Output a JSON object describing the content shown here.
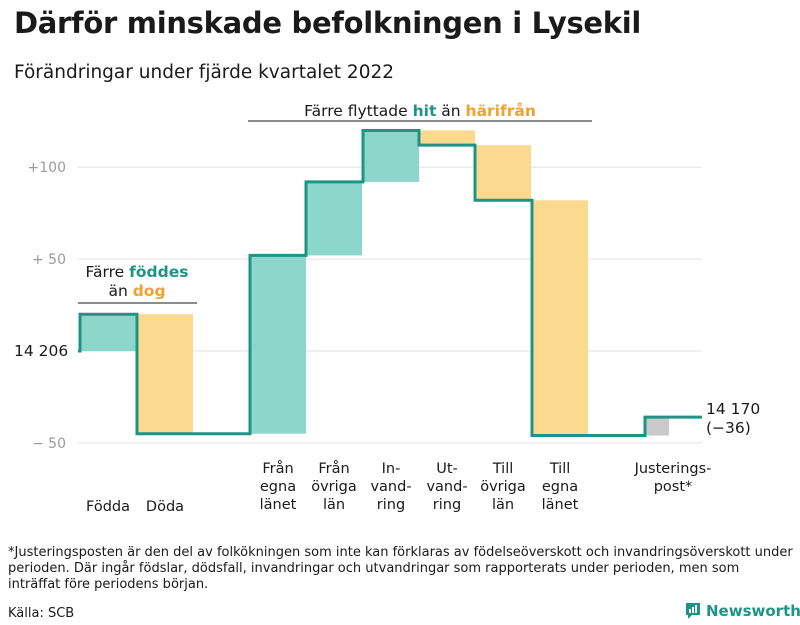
{
  "title": "Därför minskade befolkningen i Lysekil",
  "subtitle": "Förändringar under fjärde kvartalet 2022",
  "footnote": "*Justeringsposten är den del av folkökningen som inte kan förklaras av födelseöverskott och invandringsöverskott under perioden. Där ingår födslar, dödsfall, invandringar och utvandringar som rapporterats under perioden, men som inträffat före periodens början.",
  "source": "Källa: SCB",
  "brand": "Newsworthy",
  "colors": {
    "positive": "#8dd6cb",
    "negative": "#fbd98e",
    "adjustment": "#c9c9c9",
    "line": "#1d9585",
    "accent_orange": "#f0a22e",
    "grid": "#e2e2e2",
    "tick": "#9a9a9a"
  },
  "chart_data": {
    "type": "waterfall",
    "start_value": 14206,
    "start_label": "14 206",
    "end_value": 14170,
    "end_label": "14 170",
    "end_change_label": "(−36)",
    "yticks": [
      {
        "value": 100,
        "label": "+100"
      },
      {
        "value": 50,
        "label": "+ 50"
      },
      {
        "value": -50,
        "label": "− 50"
      }
    ],
    "ylim": [
      -55,
      125
    ],
    "steps": [
      {
        "label": [
          "Födda"
        ],
        "value": 20,
        "kind": "positive"
      },
      {
        "label": [
          "Döda"
        ],
        "value": -65,
        "kind": "negative"
      },
      {
        "label": [
          "Från",
          "egna",
          "länet"
        ],
        "value": 97,
        "kind": "positive"
      },
      {
        "label": [
          "Från",
          "övriga",
          "län"
        ],
        "value": 40,
        "kind": "positive"
      },
      {
        "label": [
          "In-",
          "vand-",
          "ring"
        ],
        "value": 28,
        "kind": "positive"
      },
      {
        "label": [
          "Ut-",
          "vand-",
          "ring"
        ],
        "value": -8,
        "kind": "negative"
      },
      {
        "label": [
          "Till",
          "övriga",
          "län"
        ],
        "value": -30,
        "kind": "negative"
      },
      {
        "label": [
          "Till",
          "egna",
          "länet"
        ],
        "value": -128,
        "kind": "negative"
      },
      {
        "label": [
          "Justerings-",
          "post*"
        ],
        "value": 10,
        "kind": "adjustment"
      }
    ],
    "annotations": [
      {
        "parts": [
          {
            "text": "Färre ",
            "style": "normal"
          },
          {
            "text": "föddes",
            "style": "positive"
          }
        ],
        "parts2": [
          {
            "text": "än ",
            "style": "normal"
          },
          {
            "text": "dog",
            "style": "negative"
          }
        ]
      },
      {
        "parts": [
          {
            "text": "Färre flyttade ",
            "style": "normal"
          },
          {
            "text": "hit",
            "style": "positive"
          },
          {
            "text": " än ",
            "style": "normal"
          },
          {
            "text": "härifrån",
            "style": "negative"
          }
        ]
      }
    ]
  }
}
